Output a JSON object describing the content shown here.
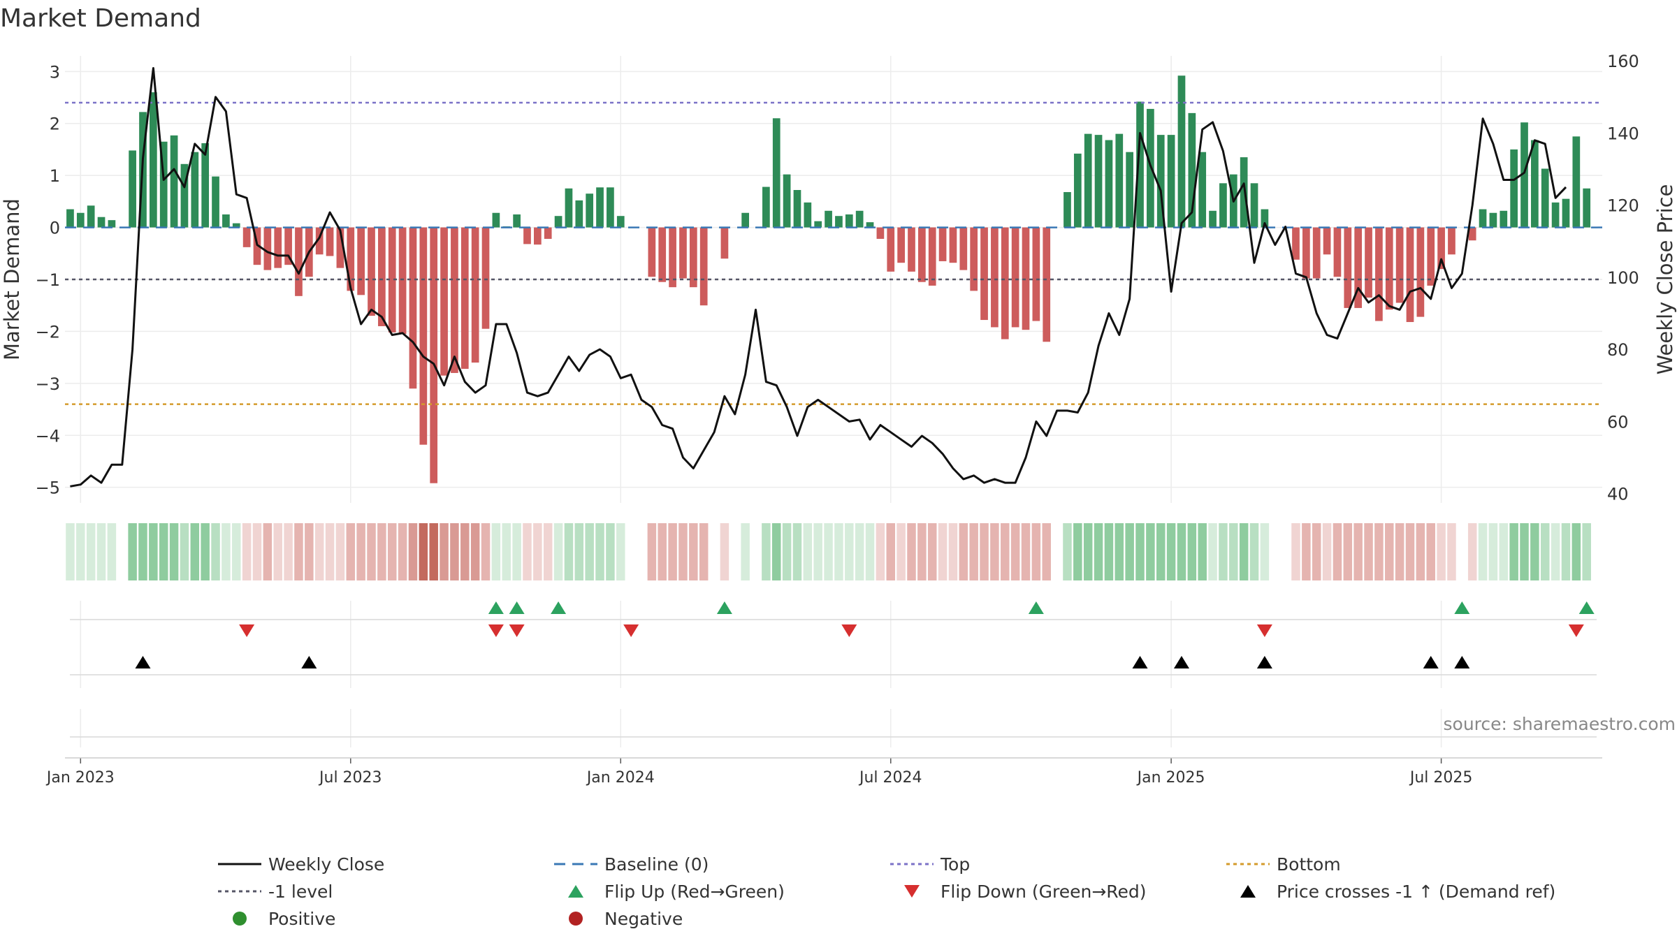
{
  "chart_data": {
    "type": "bar+line",
    "title": "Market Demand",
    "ylabel": "Market Demand",
    "y2label": "Weekly Close Price",
    "ylim": [
      -5.3,
      3.3
    ],
    "y2lim": [
      37.4,
      161.4
    ],
    "yticks": [
      3,
      2,
      1,
      0,
      -1,
      -2,
      -3,
      -4,
      -5
    ],
    "y2ticks": [
      160,
      140,
      120,
      100,
      80,
      60,
      40
    ],
    "xticks": [
      "Jan 2023",
      "Jul 2023",
      "Jan 2024",
      "Jul 2024",
      "Jan 2025",
      "Jul 2025"
    ],
    "reference_lines": {
      "top": 2.4,
      "minus_one": -1,
      "bottom": -3.4,
      "baseline": 0
    },
    "demand": [
      0.35,
      0.28,
      0.42,
      0.2,
      0.14,
      0,
      1.48,
      2.22,
      2.6,
      1.65,
      1.77,
      1.22,
      1.45,
      1.62,
      0.98,
      0.25,
      0.08,
      -0.38,
      -0.72,
      -0.82,
      -0.78,
      -0.72,
      -1.32,
      -0.95,
      -0.52,
      -0.55,
      -0.78,
      -1.22,
      -1.3,
      -1.7,
      -1.9,
      -2.02,
      -2.05,
      -3.1,
      -4.18,
      -4.92,
      -2.85,
      -2.8,
      -2.72,
      -2.6,
      -1.95,
      0.28,
      0.02,
      0.25,
      -0.32,
      -0.33,
      -0.22,
      0.22,
      0.75,
      0.52,
      0.65,
      0.77,
      0.77,
      0.22,
      0,
      0,
      -0.95,
      -1.05,
      -1.15,
      -0.98,
      -1.15,
      -1.5,
      0,
      -0.6,
      0,
      0.28,
      0,
      0.78,
      2.1,
      1.02,
      0.72,
      0.48,
      0.12,
      0.32,
      0.22,
      0.25,
      0.32,
      0.1,
      -0.22,
      -0.85,
      -0.68,
      -0.85,
      -1.05,
      -1.12,
      -0.65,
      -0.68,
      -0.82,
      -1.22,
      -1.78,
      -1.92,
      -2.15,
      -1.92,
      -1.97,
      -1.8,
      -2.2,
      0,
      0.68,
      1.42,
      1.8,
      1.78,
      1.68,
      1.8,
      1.45,
      2.42,
      2.28,
      1.78,
      1.78,
      2.92,
      2.2,
      1.45,
      0.32,
      0.85,
      1.02,
      1.35,
      0.85,
      0.35,
      0,
      0,
      -0.62,
      -0.98,
      -0.98,
      -0.52,
      -0.95,
      -1.55,
      -1.55,
      -1.35,
      -1.8,
      -1.58,
      -1.45,
      -1.82,
      -1.72,
      -1.12,
      -0.8,
      -0.52,
      0,
      -0.25,
      0.35,
      0.28,
      0.32,
      1.5,
      2.02,
      1.68,
      1.13,
      0.48,
      0.55,
      1.75,
      0.75,
      0
    ],
    "weekly_close": [
      42,
      42.5,
      45,
      43,
      48,
      48,
      80,
      133,
      158,
      127,
      130,
      125,
      137,
      134,
      150,
      146,
      123,
      122,
      109,
      107,
      106,
      106,
      101,
      107,
      111,
      118,
      113,
      97,
      87,
      91,
      89,
      84,
      84.5,
      82,
      78,
      76,
      70,
      78,
      71,
      68,
      70,
      87,
      87,
      79,
      68,
      67,
      68,
      73,
      78,
      74,
      78.5,
      80,
      78,
      72,
      73,
      66,
      64,
      59,
      58,
      50,
      47,
      52,
      57,
      67,
      62,
      73,
      91,
      71,
      70,
      64,
      56,
      64,
      66,
      64,
      62,
      60,
      60.5,
      55,
      59,
      57,
      55,
      53,
      56,
      54,
      51,
      47,
      44,
      45,
      43,
      44,
      43,
      43,
      50,
      60,
      56,
      63,
      63,
      62.5,
      68,
      81,
      90,
      84,
      94,
      140,
      131,
      124,
      96,
      115,
      118,
      141,
      143,
      135,
      121,
      126,
      104,
      115,
      109,
      114,
      101,
      100,
      90,
      84,
      83,
      90,
      97,
      93,
      95,
      92,
      91,
      96,
      97,
      94,
      105,
      97,
      101,
      120,
      144,
      137,
      127,
      127,
      129,
      138,
      137,
      122,
      125
    ],
    "flips_up": [
      41,
      43,
      47,
      63,
      93,
      134,
      146
    ],
    "flips_down": [
      17,
      41,
      43,
      54,
      75,
      115,
      145
    ],
    "price_crosses": [
      7,
      23,
      103,
      107,
      115,
      131,
      134
    ],
    "source": "source: sharemaestro.com",
    "legend": [
      {
        "label": "Weekly Close",
        "marker": "line",
        "color": "#111111"
      },
      {
        "label": "Baseline (0)",
        "marker": "dash",
        "color": "#3a78b5"
      },
      {
        "label": "Top",
        "marker": "dot-line",
        "color": "#7b72c7"
      },
      {
        "label": "Bottom",
        "marker": "dot-line",
        "color": "#d49b2c"
      },
      {
        "label": "-1 level",
        "marker": "dot-line",
        "color": "#555566"
      },
      {
        "label": "Flip Up (Red→Green)",
        "marker": "triangle-up",
        "color": "#2ca25f"
      },
      {
        "label": "Flip Down (Green→Red)",
        "marker": "triangle-down",
        "color": "#d62f2f"
      },
      {
        "label": "Price crosses -1 ↑ (Demand ref)",
        "marker": "triangle-up",
        "color": "#000000"
      },
      {
        "label": "Positive",
        "marker": "circle",
        "color": "#2f8f2f"
      },
      {
        "label": "Negative",
        "marker": "circle",
        "color": "#b22222"
      }
    ]
  },
  "colors": {
    "positive": "#2e8b57",
    "negative": "#cd5c5c",
    "line": "#111111"
  }
}
